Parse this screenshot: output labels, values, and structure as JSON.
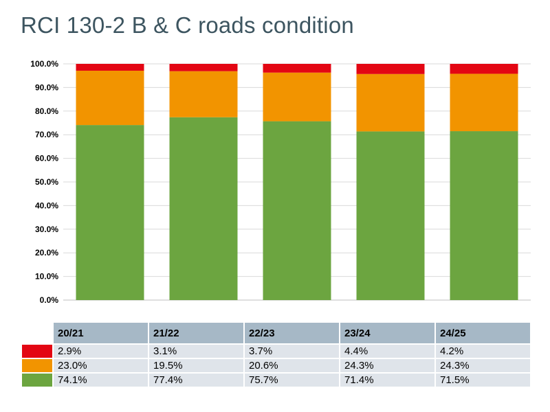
{
  "title": "RCI 130-2 B & C roads condition",
  "colors": {
    "red": "#e30613",
    "amber": "#f29400",
    "green": "#6ca540",
    "header_bg": "#a6b8c6",
    "cell_bg": "#dfe4ea",
    "grid": "#d9d9d9"
  },
  "chart_data": {
    "type": "bar",
    "stacked": true,
    "categories": [
      "20/21",
      "21/22",
      "22/23",
      "23/24",
      "24/25"
    ],
    "series": [
      {
        "name": "green",
        "color": "#6ca540",
        "values": [
          74.1,
          77.4,
          75.7,
          71.4,
          71.5
        ],
        "labels": [
          "74.1%",
          "77.4%",
          "75.7%",
          "71.4%",
          "71.5%"
        ]
      },
      {
        "name": "amber",
        "color": "#f29400",
        "values": [
          23.0,
          19.5,
          20.6,
          24.3,
          24.3
        ],
        "labels": [
          "23.0%",
          "19.5%",
          "20.6%",
          "24.3%",
          "24.3%"
        ]
      },
      {
        "name": "red",
        "color": "#e30613",
        "values": [
          2.9,
          3.1,
          3.7,
          4.4,
          4.2
        ],
        "labels": [
          "2.9%",
          "3.1%",
          "3.7%",
          "4.4%",
          "4.2%"
        ]
      }
    ],
    "ylim": [
      0,
      100
    ],
    "yticks": [
      "0.0%",
      "10.0%",
      "20.0%",
      "30.0%",
      "40.0%",
      "50.0%",
      "60.0%",
      "70.0%",
      "80.0%",
      "90.0%",
      "100.0%"
    ],
    "grid": true,
    "legend": "data-table-below"
  }
}
